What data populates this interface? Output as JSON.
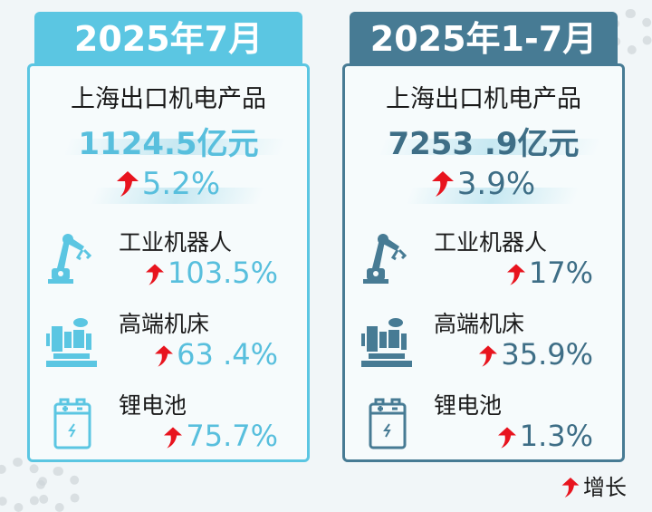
{
  "colors": {
    "up_arrow": "#e8141e",
    "left_accent": "#5bc6e2",
    "right_accent": "#477b94"
  },
  "panels": [
    {
      "header": "2025年7月",
      "title": "上海出口机电产品",
      "total": "1124.5亿元",
      "growth": "5.2%",
      "items": [
        {
          "name": "工业机器人",
          "value": "103.5%",
          "icon": "robot-arm-icon"
        },
        {
          "name": "高端机床",
          "value": "63 .4%",
          "icon": "machine-tool-icon"
        },
        {
          "name": "锂电池",
          "value": "75.7%",
          "icon": "battery-icon"
        }
      ]
    },
    {
      "header": "2025年1-7月",
      "title": "上海出口机电产品",
      "total": "7253 .9亿元",
      "growth": "3.9%",
      "items": [
        {
          "name": "工业机器人",
          "value": "17%",
          "icon": "robot-arm-icon"
        },
        {
          "name": "高端机床",
          "value": "35.9%",
          "icon": "machine-tool-icon"
        },
        {
          "name": "锂电池",
          "value": "1.3%",
          "icon": "battery-icon"
        }
      ]
    }
  ],
  "legend": {
    "label": "增长",
    "icon": "up-arrow-icon"
  }
}
